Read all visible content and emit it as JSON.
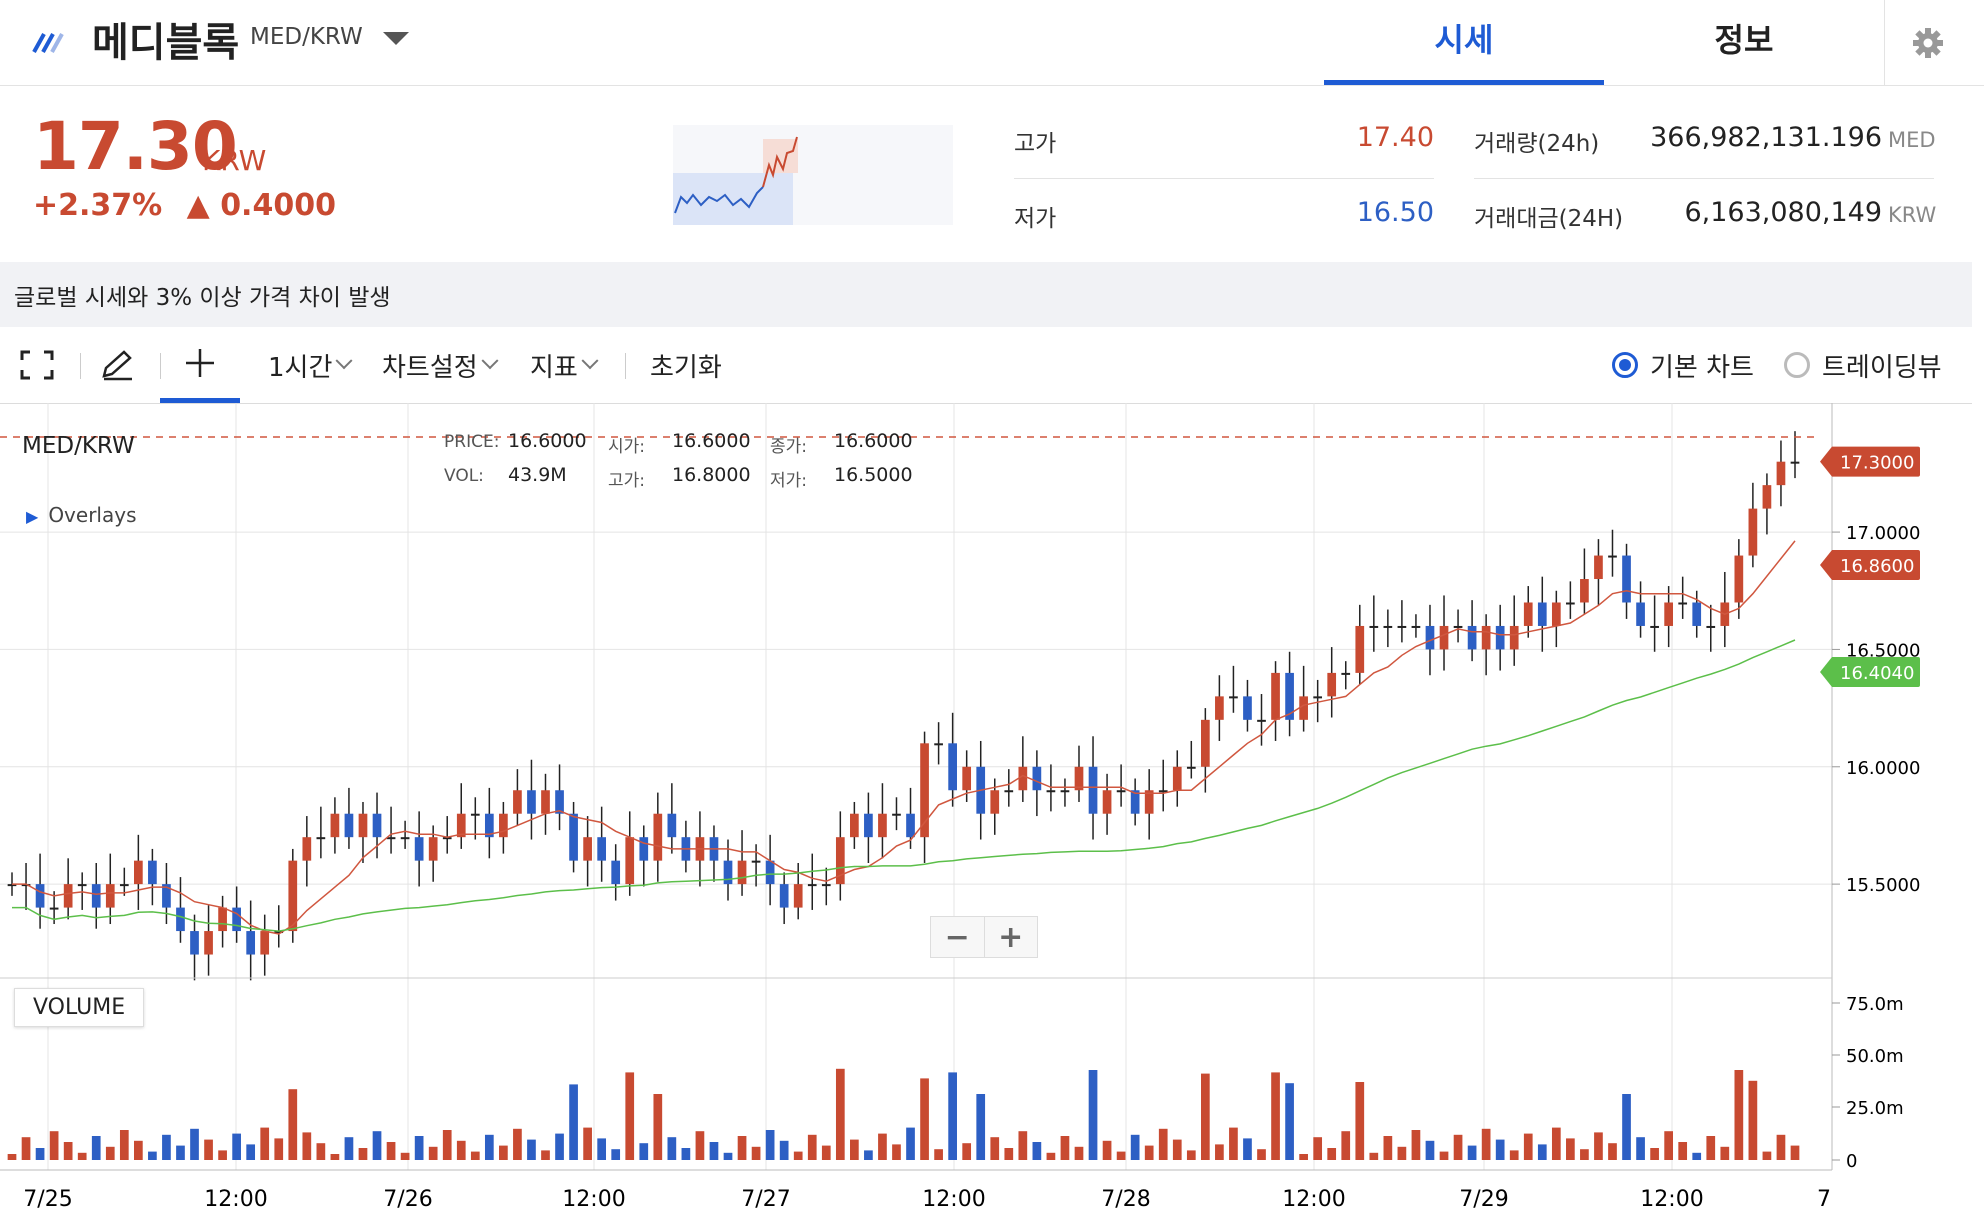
{
  "header": {
    "coin_name": "메디블록",
    "pair": "MED/KRW",
    "tabs": [
      "시세",
      "정보"
    ]
  },
  "price": {
    "value": "17.30",
    "unit": "KRW",
    "change_pct": "+2.37%",
    "change_abs": "▲ 0.4000"
  },
  "stats": {
    "high_label": "고가",
    "high_value": "17.40",
    "low_label": "저가",
    "low_value": "16.50",
    "volume_label": "거래량(24h)",
    "volume_value": "366,982,131.196",
    "volume_unit": "MED",
    "amount_label": "거래대금(24H)",
    "amount_value": "6,163,080,149",
    "amount_unit": "KRW"
  },
  "notice": "글로벌 시세와 3% 이상 가격 차이 발생",
  "toolbar": {
    "interval": "1시간",
    "chart_settings": "차트설정",
    "indicators": "지표",
    "reset": "초기화",
    "basic_chart": "기본 차트",
    "tradingview": "트레이딩뷰"
  },
  "legend": {
    "pair": "MED/KRW",
    "price_k": "PRICE:",
    "price_v": "16.6000",
    "open_k": "시가:",
    "open_v": "16.6000",
    "close_k": "종가:",
    "close_v": "16.6000",
    "vol_k": "VOL:",
    "vol_v": "43.9M",
    "high_k": "고가:",
    "high_v": "16.8000",
    "low_k": "저가:",
    "low_v": "16.5000",
    "overlays": "Overlays",
    "volume_title": "VOLUME"
  },
  "colors": {
    "up": "#c84a31",
    "down": "#2d5fc4",
    "ma_short": "#d0573f",
    "ma_long": "#5cbf4a",
    "accent": "#1e5bd4"
  },
  "chart_data": {
    "type": "candlestick",
    "price_axis_ticks": [
      "17.0000",
      "16.5000",
      "16.0000",
      "15.5000"
    ],
    "price_axis_range": [
      15.1,
      17.55
    ],
    "volume_axis_ticks": [
      "75.0m",
      "50.0m",
      "25.0m",
      "0"
    ],
    "x_ticks": [
      "7/25",
      "12:00",
      "7/26",
      "12:00",
      "7/27",
      "12:00",
      "7/28",
      "12:00",
      "7/29",
      "12:00",
      "7"
    ],
    "price_tags": [
      {
        "label": "17.3000",
        "value": 17.3,
        "color": "#c84a31"
      },
      {
        "label": "16.8600",
        "value": 16.86,
        "color": "#c84a31"
      },
      {
        "label": "16.4040",
        "value": 16.404,
        "color": "#5cbf4a"
      }
    ],
    "candles_close": [
      15.5,
      15.5,
      15.4,
      15.4,
      15.5,
      15.5,
      15.4,
      15.5,
      15.5,
      15.6,
      15.5,
      15.4,
      15.3,
      15.2,
      15.3,
      15.4,
      15.3,
      15.2,
      15.3,
      15.3,
      15.6,
      15.7,
      15.7,
      15.8,
      15.7,
      15.8,
      15.7,
      15.7,
      15.7,
      15.6,
      15.7,
      15.7,
      15.8,
      15.8,
      15.7,
      15.8,
      15.9,
      15.8,
      15.9,
      15.8,
      15.6,
      15.7,
      15.6,
      15.5,
      15.7,
      15.6,
      15.8,
      15.7,
      15.6,
      15.7,
      15.6,
      15.5,
      15.6,
      15.6,
      15.5,
      15.4,
      15.5,
      15.5,
      15.5,
      15.7,
      15.8,
      15.7,
      15.8,
      15.8,
      15.7,
      16.1,
      16.1,
      15.9,
      16.0,
      15.8,
      15.9,
      15.9,
      16.0,
      15.9,
      15.9,
      15.9,
      16.0,
      15.8,
      15.9,
      15.9,
      15.8,
      15.9,
      15.9,
      16.0,
      16.0,
      16.2,
      16.3,
      16.3,
      16.2,
      16.2,
      16.4,
      16.2,
      16.3,
      16.3,
      16.4,
      16.4,
      16.6,
      16.6,
      16.6,
      16.6,
      16.6,
      16.5,
      16.6,
      16.6,
      16.5,
      16.6,
      16.5,
      16.6,
      16.7,
      16.6,
      16.7,
      16.7,
      16.8,
      16.9,
      16.9,
      16.7,
      16.6,
      16.6,
      16.7,
      16.7,
      16.6,
      16.6,
      16.7,
      16.9,
      17.1,
      17.2,
      17.3,
      17.3
    ]
  }
}
